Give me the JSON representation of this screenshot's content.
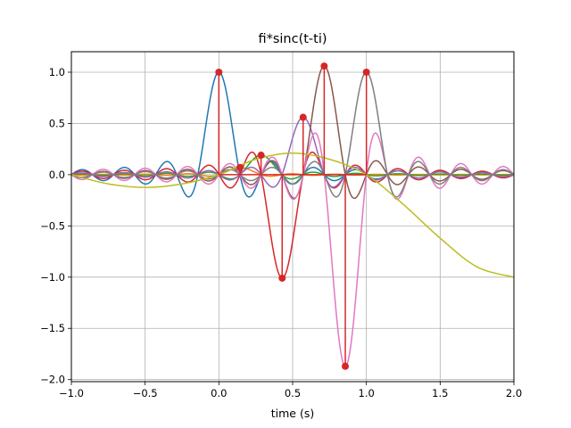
{
  "chart_data": {
    "type": "line",
    "title": "fi*sinc(t-ti)",
    "xlabel": "time (s)",
    "ylabel": "",
    "xlim": [
      -1.0,
      2.0
    ],
    "ylim": [
      -2.02,
      1.2
    ],
    "grid": true,
    "legend": "none",
    "x_ticks": [
      -1.0,
      -0.5,
      0.0,
      0.5,
      1.0,
      1.5,
      2.0
    ],
    "x_tick_labels": [
      "−1.0",
      "−0.5",
      "0.0",
      "0.5",
      "1.0",
      "1.5",
      "2.0"
    ],
    "y_ticks": [
      -2.0,
      -1.5,
      -1.0,
      -0.5,
      0.0,
      0.5,
      1.0
    ],
    "y_tick_labels": [
      "−2.0",
      "−1.5",
      "−1.0",
      "−0.5",
      "0.0",
      "0.5",
      "1.0"
    ],
    "sinc_bandwidth": 7,
    "samples": [
      {
        "t": 0.0,
        "f": 1.0,
        "color": "#1f77b4"
      },
      {
        "t": 0.143,
        "f": 0.07,
        "color": "#ff7f0e"
      },
      {
        "t": 0.286,
        "f": 0.19,
        "color": "#2ca02c"
      },
      {
        "t": 0.429,
        "f": -1.01,
        "color": "#d62728"
      },
      {
        "t": 0.571,
        "f": 0.56,
        "color": "#9467bd"
      },
      {
        "t": 0.714,
        "f": 1.06,
        "color": "#8c564b"
      },
      {
        "t": 0.857,
        "f": -1.87,
        "color": "#e377c2"
      },
      {
        "t": 1.0,
        "f": 1.0,
        "color": "#7f7f7f"
      }
    ],
    "reconstructed_curve": {
      "color": "#bcbd22",
      "x": [
        -1.0,
        -0.75,
        -0.5,
        -0.25,
        0.0,
        0.25,
        0.5,
        0.75,
        1.0,
        1.25,
        1.5,
        1.75,
        2.0
      ],
      "y": [
        0.0,
        -0.09,
        -0.125,
        -0.09,
        0.0,
        0.15,
        0.21,
        0.15,
        0.0,
        -0.29,
        -0.62,
        -0.9,
        -1.0
      ]
    },
    "stem_color": "#d62728",
    "marker_color": "#d62728"
  }
}
